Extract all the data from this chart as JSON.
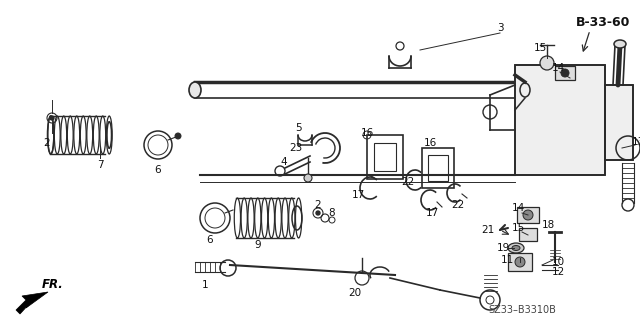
{
  "bg_color": "#ffffff",
  "diagram_ref": "SZ33–B3310B",
  "part_ref": "B-33-60",
  "fig_width": 6.4,
  "fig_height": 3.19,
  "dpi": 100,
  "gray": "#2a2a2a",
  "light_gray": "#888888"
}
